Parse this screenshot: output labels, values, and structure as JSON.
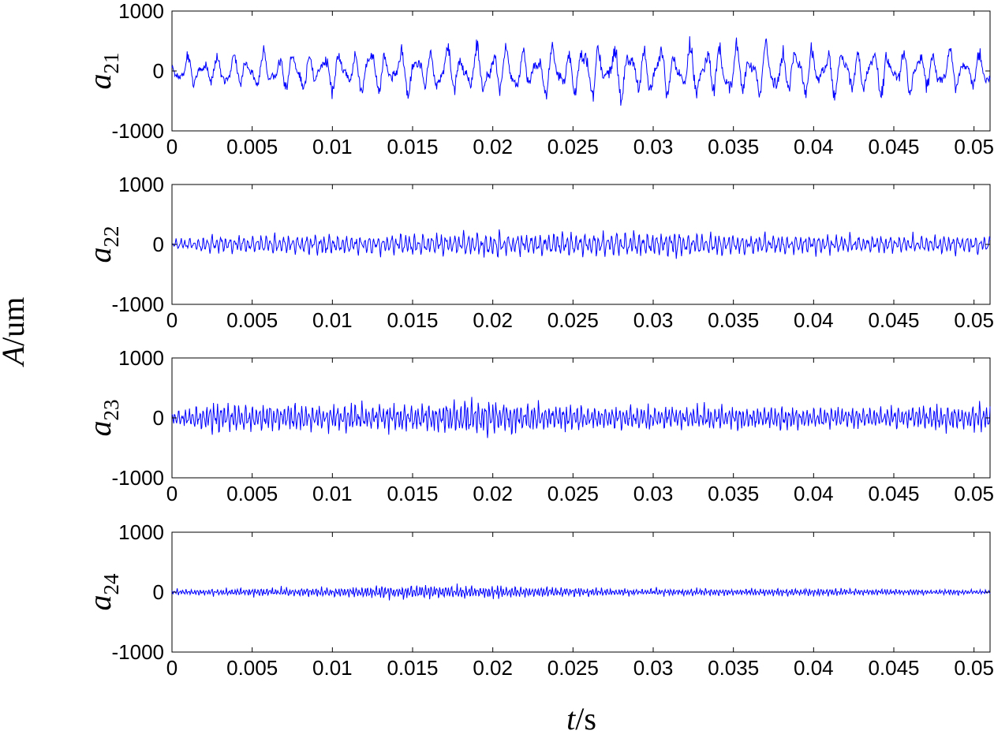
{
  "figure": {
    "xlabel": "t/s",
    "xlabel_italic": "t",
    "xlabel_unit": "/s",
    "ylabel": "A/um",
    "ylabel_italic": "A",
    "ylabel_unit": "/um"
  },
  "chart_data": [
    {
      "type": "line",
      "panel_label": "a21",
      "label_base": "a",
      "label_sub": "21",
      "xlim": [
        0,
        0.051
      ],
      "ylim": [
        -1000,
        1000
      ],
      "xticks": [
        0,
        0.005,
        0.01,
        0.015,
        0.02,
        0.025,
        0.03,
        0.035,
        0.04,
        0.045,
        0.05
      ],
      "xtick_labels": [
        "0",
        "0.005",
        "0.01",
        "0.015",
        "0.02",
        "0.025",
        "0.03",
        "0.035",
        "0.04",
        "0.045",
        "0.05"
      ],
      "yticks": [
        -1000,
        0,
        1000
      ],
      "ytick_labels": [
        "-1000",
        "0",
        "1000"
      ],
      "line_color": "#0000ff",
      "signal": {
        "duration": 0.051,
        "samples": 1400,
        "amplitude_envelope": [
          [
            0,
            300
          ],
          [
            0.006,
            450
          ],
          [
            0.0265,
            600
          ],
          [
            0.043,
            580
          ],
          [
            0.051,
            400
          ]
        ],
        "peak_min": -650,
        "peak_max": 650,
        "dominant_period": 0.00095
      }
    },
    {
      "type": "line",
      "panel_label": "a22",
      "label_base": "a",
      "label_sub": "22",
      "xlim": [
        0,
        0.051
      ],
      "ylim": [
        -1000,
        1000
      ],
      "xticks": [
        0,
        0.005,
        0.01,
        0.015,
        0.02,
        0.025,
        0.03,
        0.035,
        0.04,
        0.045,
        0.05
      ],
      "xtick_labels": [
        "0",
        "0.005",
        "0.01",
        "0.015",
        "0.02",
        "0.025",
        "0.03",
        "0.035",
        "0.04",
        "0.045",
        "0.05"
      ],
      "yticks": [
        -1000,
        0,
        1000
      ],
      "ytick_labels": [
        "-1000",
        "0",
        "1000"
      ],
      "line_color": "#0000ff",
      "signal": {
        "duration": 0.051,
        "samples": 1400,
        "amplitude_envelope": [
          [
            0,
            100
          ],
          [
            0.002,
            200
          ],
          [
            0.009,
            220
          ],
          [
            0.019,
            280
          ],
          [
            0.0235,
            270
          ],
          [
            0.0315,
            280
          ],
          [
            0.0425,
            200
          ],
          [
            0.051,
            200
          ]
        ],
        "peak_min": -300,
        "peak_max": 280,
        "dominant_period": 0.00028
      }
    },
    {
      "type": "line",
      "panel_label": "a23",
      "label_base": "a",
      "label_sub": "23",
      "xlim": [
        0,
        0.051
      ],
      "ylim": [
        -1000,
        1000
      ],
      "xticks": [
        0,
        0.005,
        0.01,
        0.015,
        0.02,
        0.025,
        0.03,
        0.035,
        0.04,
        0.045,
        0.05
      ],
      "xtick_labels": [
        "0",
        "0.005",
        "0.01",
        "0.015",
        "0.02",
        "0.025",
        "0.03",
        "0.035",
        "0.04",
        "0.045",
        "0.05"
      ],
      "yticks": [
        -1000,
        0,
        1000
      ],
      "ytick_labels": [
        "-1000",
        "0",
        "1000"
      ],
      "line_color": "#0000ff",
      "signal": {
        "duration": 0.051,
        "samples": 1400,
        "amplitude_envelope": [
          [
            0,
            150
          ],
          [
            0.003,
            350
          ],
          [
            0.0145,
            300
          ],
          [
            0.019,
            450
          ],
          [
            0.0235,
            280
          ],
          [
            0.0435,
            250
          ],
          [
            0.051,
            300
          ]
        ],
        "peak_min": -480,
        "peak_max": 360,
        "dominant_period": 0.00022
      }
    },
    {
      "type": "line",
      "panel_label": "a24",
      "label_base": "a",
      "label_sub": "24",
      "xlim": [
        0,
        0.051
      ],
      "ylim": [
        -1000,
        1000
      ],
      "xticks": [
        0,
        0.005,
        0.01,
        0.015,
        0.02,
        0.025,
        0.03,
        0.035,
        0.04,
        0.045,
        0.05
      ],
      "xtick_labels": [
        "0",
        "0.005",
        "0.01",
        "0.015",
        "0.02",
        "0.025",
        "0.03",
        "0.035",
        "0.04",
        "0.045",
        "0.05"
      ],
      "yticks": [
        -1000,
        0,
        1000
      ],
      "ytick_labels": [
        "-1000",
        "0",
        "1000"
      ],
      "line_color": "#0000ff",
      "signal": {
        "duration": 0.051,
        "samples": 1400,
        "amplitude_envelope": [
          [
            0,
            60
          ],
          [
            0.011,
            120
          ],
          [
            0.0148,
            170
          ],
          [
            0.0188,
            150
          ],
          [
            0.0288,
            80
          ],
          [
            0.0385,
            90
          ],
          [
            0.051,
            50
          ]
        ],
        "peak_min": -170,
        "peak_max": 170,
        "dominant_period": 0.00018
      }
    }
  ]
}
